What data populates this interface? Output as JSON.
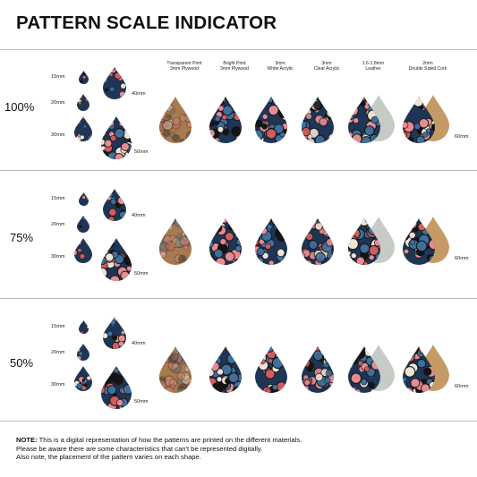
{
  "title": "PATTERN SCALE INDICATOR",
  "sections": [
    {
      "scale": "100%"
    },
    {
      "scale": "75%"
    },
    {
      "scale": "50%"
    }
  ],
  "sizes": [
    "15mm",
    "20mm",
    "30mm",
    "40mm",
    "50mm",
    "60mm"
  ],
  "materials": [
    {
      "line1": "Transparent Print",
      "line2": "3mm Plywood",
      "finish": "transparent"
    },
    {
      "line1": "Bright Print",
      "line2": "3mm Plywood",
      "finish": "bright"
    },
    {
      "line1": "3mm",
      "line2": "White Acrylic",
      "finish": "acrylic"
    },
    {
      "line1": "3mm",
      "line2": "Clear Acrylic",
      "finish": "clear"
    },
    {
      "line1": "1.6-1.8mm",
      "line2": "Leather",
      "finish": "leather"
    },
    {
      "line1": "2mm",
      "line2": "Double Sided Cork",
      "finish": "cork"
    }
  ],
  "note": {
    "bold": "NOTE:",
    "line1": " This is a digital representation of how the patterns are printed on the different materials.",
    "line2": "Please be aware there are some characteristics that can't be represented digitally.",
    "line3": "Also note, the placement of the pattern varies on each shape."
  },
  "colors": {
    "navy": "#1f3556",
    "blue": "#3f6f9c",
    "pink": "#e58c93",
    "coral": "#cf5d5d",
    "cream": "#efe3d6",
    "black": "#141414",
    "wood": "#a87a4f",
    "leather": "#c6cbc6",
    "cork": "#c69a66"
  }
}
